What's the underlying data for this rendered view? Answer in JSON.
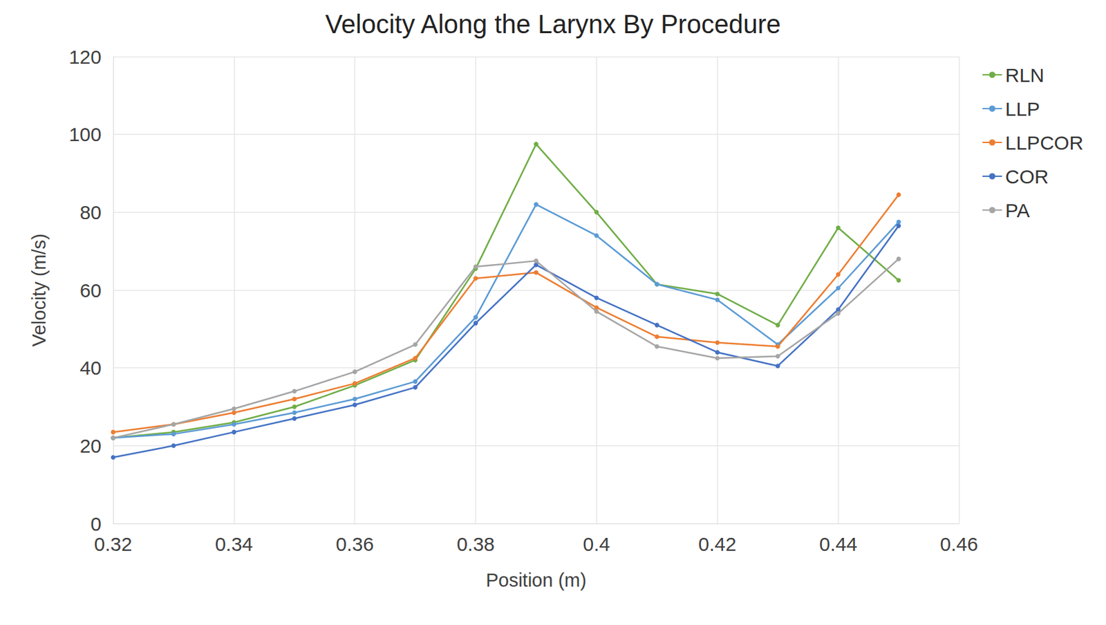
{
  "chart_data": {
    "type": "line",
    "title": "Velocity Along the Larynx By Procedure",
    "x_label": "Position (m)",
    "y_label": "Velocity (m/s)",
    "x": [
      0.32,
      0.33,
      0.34,
      0.35,
      0.36,
      0.37,
      0.38,
      0.39,
      0.4,
      0.41,
      0.42,
      0.43,
      0.44,
      0.45
    ],
    "series": [
      {
        "name": "RLN",
        "color": "#70ad47",
        "values": [
          22,
          23.5,
          26,
          30,
          35.5,
          42,
          65.5,
          97.5,
          80,
          61.5,
          59,
          51,
          76,
          62.5
        ]
      },
      {
        "name": "LLP",
        "color": "#5b9bd5",
        "values": [
          22,
          23,
          25.5,
          28.5,
          32,
          36.5,
          53,
          82,
          74,
          61.5,
          57.5,
          46,
          60.5,
          77.5
        ]
      },
      {
        "name": "LLPCOR",
        "color": "#ed7d31",
        "values": [
          23.5,
          25.5,
          28.5,
          32,
          36,
          42.5,
          63,
          64.5,
          55.5,
          48,
          46.5,
          45.5,
          64,
          84.5
        ]
      },
      {
        "name": "COR",
        "color": "#4472c4",
        "values": [
          17,
          20,
          23.5,
          27,
          30.5,
          35,
          51.5,
          66.5,
          58,
          51,
          44,
          40.5,
          55,
          76.5
        ]
      },
      {
        "name": "PA",
        "color": "#a5a5a5",
        "values": [
          22,
          25.5,
          29.5,
          34,
          39,
          46,
          66,
          67.5,
          54.5,
          45.5,
          42.5,
          43,
          54,
          68
        ]
      }
    ],
    "xlim": [
      0.32,
      0.46
    ],
    "xticks": [
      0.32,
      0.34,
      0.36,
      0.38,
      0.4,
      0.42,
      0.44,
      0.46
    ],
    "ylim": [
      0,
      120
    ],
    "yticks": [
      0,
      20,
      40,
      60,
      80,
      100,
      120
    ],
    "grid": true,
    "legend": "right",
    "marker": "circle"
  }
}
